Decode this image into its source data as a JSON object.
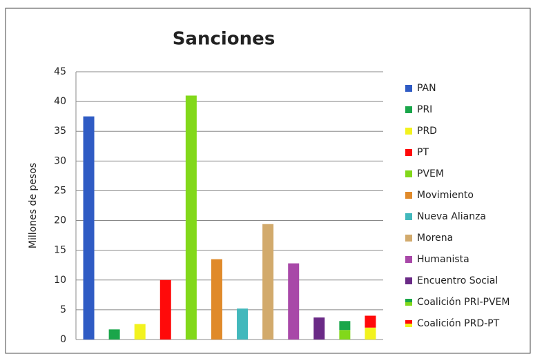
{
  "chart_data": {
    "type": "bar",
    "title": "Sanciones",
    "y_label": "Millones de pesos",
    "categories": [
      "PAN",
      "PRI",
      "PRD",
      "PT",
      "PVEM",
      "Movimiento",
      "Nueva Alianza",
      "Morena",
      "Humanista",
      "Encuentro Social",
      "Coalición PRI-PVEM",
      "Coalición PRD-PT"
    ],
    "values": [
      37.5,
      1.7,
      2.6,
      10,
      41,
      13.5,
      5.2,
      19.4,
      12.8,
      3.7,
      1.6,
      2.0
    ],
    "colors": [
      "#2f5bc4",
      "#1aa64a",
      "#f2f21e",
      "#ff0a0a",
      "#82d81a",
      "#e08a2a",
      "#42b8bc",
      "#d2aa6c",
      "#a848a8",
      "#6a2a86",
      "#82d81a",
      "#f2f21e"
    ],
    "stack_values": [
      null,
      null,
      null,
      null,
      null,
      null,
      null,
      null,
      null,
      null,
      1.5,
      2.0
    ],
    "stack_colors": [
      null,
      null,
      null,
      null,
      null,
      null,
      null,
      null,
      null,
      null,
      "#1aa64a",
      "#ff0a0a"
    ],
    "ylim": [
      0,
      45
    ],
    "yticks": [
      0,
      5,
      10,
      15,
      20,
      25,
      30,
      35,
      40,
      45
    ],
    "grid": true,
    "legend": "right"
  }
}
